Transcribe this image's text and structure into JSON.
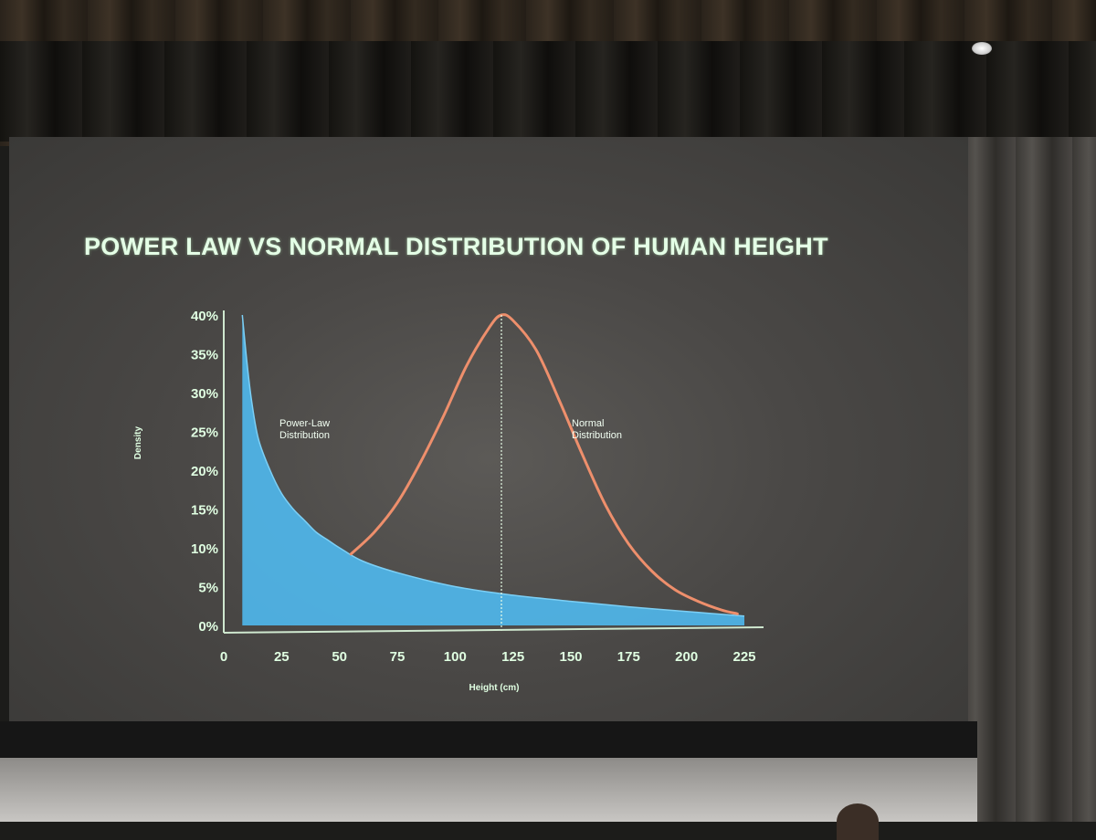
{
  "slide": {
    "title": "POWER LAW VS NORMAL DISTRIBUTION OF HUMAN HEIGHT"
  },
  "colors": {
    "power_law_fill": "#4fb6ea",
    "normal_line": "#ee8f6c",
    "axis": "#cfe8cf",
    "text": "#e0ffe2"
  },
  "chart_data": {
    "type": "area",
    "title": "POWER LAW VS NORMAL DISTRIBUTION OF HUMAN HEIGHT",
    "xlabel": "Height (cm)",
    "ylabel": "Density",
    "xlim": [
      0,
      225
    ],
    "ylim": [
      0,
      40
    ],
    "x_ticks": [
      "0",
      "25",
      "50",
      "75",
      "100",
      "125",
      "150",
      "175",
      "200",
      "225"
    ],
    "y_ticks": [
      "0%",
      "5%",
      "10%",
      "15%",
      "20%",
      "25%",
      "30%",
      "35%",
      "40%"
    ],
    "grid": false,
    "legend": "none",
    "series": [
      {
        "type": "area",
        "annotation": [
          "Power-Law",
          "Distribution"
        ],
        "x": [
          8,
          10,
          12,
          15,
          20,
          25,
          30,
          35,
          40,
          45,
          50,
          60,
          75,
          100,
          125,
          150,
          175,
          200,
          225
        ],
        "y": [
          40,
          34,
          29,
          24,
          20,
          17,
          15,
          13.5,
          12,
          11,
          10,
          8.3,
          6.8,
          5,
          3.9,
          3.1,
          2.4,
          1.8,
          1.2
        ]
      },
      {
        "type": "line",
        "annotation": [
          "Normal",
          "Distribution"
        ],
        "x": [
          55,
          65,
          75,
          85,
          95,
          105,
          115,
          120,
          125,
          135,
          145,
          155,
          165,
          175,
          185,
          195,
          205,
          215,
          222
        ],
        "y": [
          9.2,
          12,
          15.8,
          21,
          27,
          33.5,
          38.5,
          40,
          39.3,
          35.5,
          29,
          22,
          15.5,
          10.5,
          7,
          4.6,
          3.1,
          2,
          1.5
        ]
      }
    ],
    "reference_line": {
      "x": 120,
      "style": "dotted"
    }
  }
}
